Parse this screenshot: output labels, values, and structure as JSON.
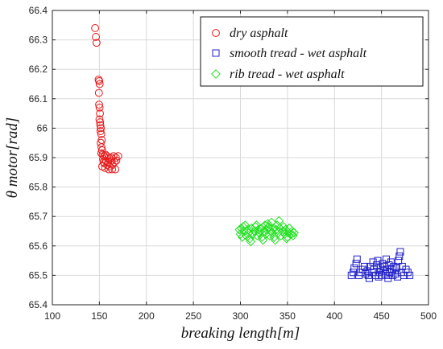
{
  "chart_data": {
    "type": "scatter",
    "title": "",
    "xlabel": "breaking length[m]",
    "ylabel": "θ motor[rad]",
    "xlim": [
      100,
      500
    ],
    "ylim": [
      65.4,
      66.4
    ],
    "xticks": [
      100,
      150,
      200,
      250,
      300,
      350,
      400,
      450,
      500
    ],
    "yticks": [
      65.4,
      65.5,
      65.6,
      65.7,
      65.8,
      65.9,
      66,
      66.1,
      66.2,
      66.3,
      66.4
    ],
    "xtick_labels": [
      "100",
      "150",
      "200",
      "250",
      "300",
      "350",
      "400",
      "450",
      "500"
    ],
    "ytick_labels": [
      "65.4",
      "65.5",
      "65.6",
      "65.7",
      "65.8",
      "65.9",
      "66",
      "66.1",
      "66.2",
      "66.3",
      "66.4"
    ],
    "grid": true,
    "legend_position": "top-right",
    "series": [
      {
        "name": "dry asphalt",
        "marker": "circle",
        "color": "#e8191a",
        "points": [
          [
            145.5,
            66.34
          ],
          [
            146.3,
            66.31
          ],
          [
            147.0,
            66.29
          ],
          [
            149.2,
            66.165
          ],
          [
            149.8,
            66.16
          ],
          [
            150.3,
            66.15
          ],
          [
            149.5,
            66.12
          ],
          [
            149.7,
            66.08
          ],
          [
            150.2,
            66.07
          ],
          [
            150.6,
            66.05
          ],
          [
            150.1,
            66.03
          ],
          [
            150.8,
            66.02
          ],
          [
            151.0,
            66.01
          ],
          [
            151.5,
            66.0
          ],
          [
            151.2,
            65.99
          ],
          [
            152.0,
            65.98
          ],
          [
            152.5,
            65.96
          ],
          [
            151.4,
            65.95
          ],
          [
            152.2,
            65.935
          ],
          [
            152.9,
            65.925
          ],
          [
            152.0,
            65.915
          ],
          [
            153.5,
            65.91
          ],
          [
            155.0,
            65.905
          ],
          [
            156.5,
            65.91
          ],
          [
            158.0,
            65.905
          ],
          [
            160.0,
            65.9
          ],
          [
            162.5,
            65.9
          ],
          [
            165.0,
            65.905
          ],
          [
            167.5,
            65.9
          ],
          [
            170.0,
            65.905
          ],
          [
            154.0,
            65.895
          ],
          [
            157.0,
            65.89
          ],
          [
            159.5,
            65.885
          ],
          [
            163.0,
            65.89
          ],
          [
            166.0,
            65.885
          ],
          [
            155.5,
            65.88
          ],
          [
            158.5,
            65.875
          ],
          [
            161.0,
            65.87
          ],
          [
            164.0,
            65.875
          ],
          [
            153.0,
            65.87
          ],
          [
            156.0,
            65.865
          ],
          [
            160.0,
            65.86
          ],
          [
            163.5,
            65.86
          ],
          [
            167.0,
            65.86
          ],
          [
            154.5,
            65.885
          ],
          [
            168.0,
            65.89
          ]
        ]
      },
      {
        "name": "smooth tread - wet asphalt",
        "marker": "square",
        "color": "#1f1fc8",
        "points": [
          [
            418,
            65.5
          ],
          [
            420,
            65.51
          ],
          [
            421,
            65.525
          ],
          [
            423,
            65.54
          ],
          [
            424,
            65.555
          ],
          [
            426,
            65.5
          ],
          [
            428,
            65.51
          ],
          [
            430,
            65.52
          ],
          [
            432,
            65.53
          ],
          [
            433,
            65.505
          ],
          [
            435,
            65.515
          ],
          [
            436,
            65.5
          ],
          [
            438,
            65.53
          ],
          [
            440,
            65.51
          ],
          [
            441,
            65.545
          ],
          [
            442,
            65.52
          ],
          [
            444,
            65.5
          ],
          [
            445,
            65.535
          ],
          [
            446,
            65.55
          ],
          [
            448,
            65.51
          ],
          [
            449,
            65.525
          ],
          [
            450,
            65.5
          ],
          [
            451,
            65.54
          ],
          [
            452,
            65.515
          ],
          [
            453,
            65.53
          ],
          [
            454,
            65.505
          ],
          [
            455,
            65.555
          ],
          [
            456,
            65.52
          ],
          [
            457,
            65.5
          ],
          [
            458,
            65.535
          ],
          [
            459,
            65.51
          ],
          [
            460,
            65.545
          ],
          [
            461,
            65.52
          ],
          [
            462,
            65.5
          ],
          [
            463,
            65.53
          ],
          [
            465,
            65.505
          ],
          [
            466,
            65.525
          ],
          [
            468,
            65.55
          ],
          [
            469,
            65.565
          ],
          [
            470,
            65.58
          ],
          [
            471,
            65.51
          ],
          [
            472,
            65.53
          ],
          [
            474,
            65.5
          ],
          [
            476,
            65.52
          ],
          [
            478,
            65.51
          ],
          [
            480,
            65.5
          ],
          [
            437,
            65.49
          ],
          [
            447,
            65.495
          ],
          [
            457,
            65.49
          ],
          [
            467,
            65.495
          ]
        ]
      },
      {
        "name": "rib tread - wet asphalt",
        "marker": "diamond",
        "color": "#20e020",
        "points": [
          [
            299,
            65.655
          ],
          [
            300,
            65.64
          ],
          [
            301,
            65.66
          ],
          [
            302,
            65.63
          ],
          [
            304,
            65.65
          ],
          [
            305,
            65.67
          ],
          [
            306,
            65.635
          ],
          [
            308,
            65.655
          ],
          [
            309,
            65.645
          ],
          [
            310,
            65.625
          ],
          [
            312,
            65.66
          ],
          [
            313,
            65.64
          ],
          [
            315,
            65.65
          ],
          [
            316,
            65.665
          ],
          [
            318,
            65.635
          ],
          [
            319,
            65.655
          ],
          [
            320,
            65.645
          ],
          [
            322,
            65.66
          ],
          [
            323,
            65.63
          ],
          [
            325,
            65.65
          ],
          [
            326,
            65.67
          ],
          [
            327,
            65.64
          ],
          [
            328,
            65.655
          ],
          [
            330,
            65.665
          ],
          [
            331,
            65.635
          ],
          [
            332,
            65.65
          ],
          [
            333,
            65.68
          ],
          [
            334,
            65.645
          ],
          [
            335,
            65.66
          ],
          [
            336,
            65.63
          ],
          [
            338,
            65.655
          ],
          [
            339,
            65.67
          ],
          [
            340,
            65.645
          ],
          [
            341,
            65.685
          ],
          [
            342,
            65.66
          ],
          [
            343,
            65.635
          ],
          [
            345,
            65.65
          ],
          [
            346,
            65.665
          ],
          [
            347,
            65.64
          ],
          [
            348,
            65.655
          ],
          [
            350,
            65.63
          ],
          [
            351,
            65.645
          ],
          [
            352,
            65.66
          ],
          [
            354,
            65.64
          ],
          [
            355,
            65.65
          ],
          [
            356,
            65.635
          ],
          [
            357,
            65.645
          ],
          [
            311,
            65.615
          ],
          [
            324,
            65.62
          ],
          [
            337,
            65.62
          ],
          [
            349,
            65.625
          ],
          [
            303,
            65.665
          ],
          [
            317,
            65.67
          ],
          [
            329,
            65.675
          ]
        ]
      }
    ]
  }
}
